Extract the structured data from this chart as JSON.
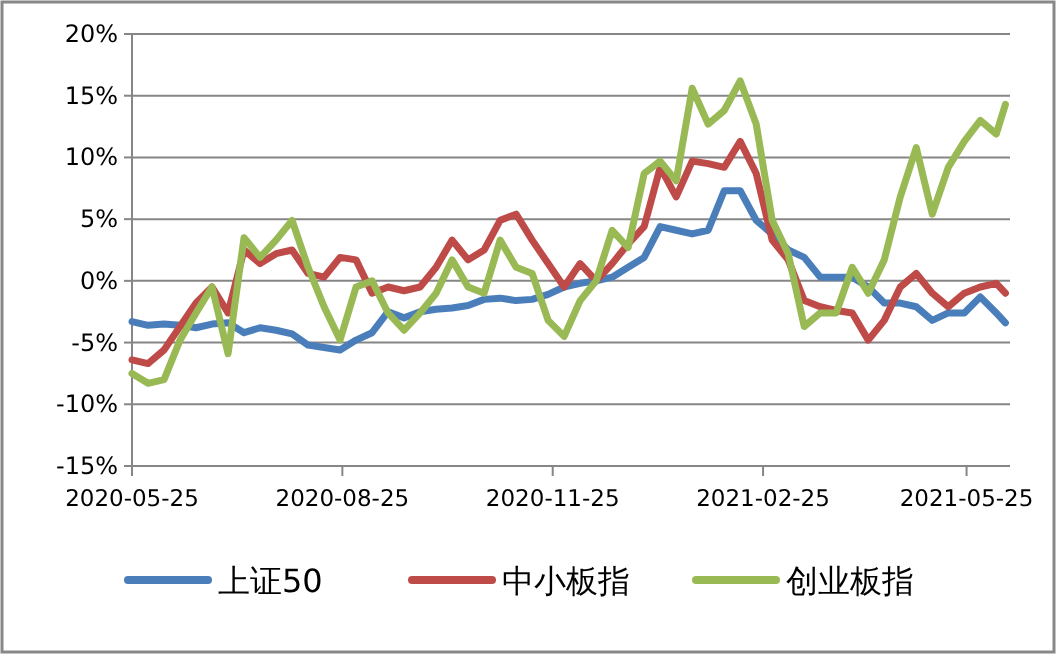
{
  "chart_data": {
    "type": "line",
    "x": [
      "2020-05-25",
      "2020-06-01",
      "2020-06-08",
      "2020-06-15",
      "2020-06-22",
      "2020-06-29",
      "2020-07-06",
      "2020-07-13",
      "2020-07-20",
      "2020-07-27",
      "2020-08-03",
      "2020-08-10",
      "2020-08-17",
      "2020-08-24",
      "2020-08-31",
      "2020-09-07",
      "2020-09-14",
      "2020-09-21",
      "2020-09-28",
      "2020-10-05",
      "2020-10-12",
      "2020-10-19",
      "2020-10-26",
      "2020-11-02",
      "2020-11-09",
      "2020-11-16",
      "2020-11-23",
      "2020-11-30",
      "2020-12-07",
      "2020-12-14",
      "2020-12-21",
      "2020-12-28",
      "2021-01-04",
      "2021-01-11",
      "2021-01-18",
      "2021-01-25",
      "2021-02-01",
      "2021-02-08",
      "2021-02-15",
      "2021-02-22",
      "2021-03-01",
      "2021-03-08",
      "2021-03-15",
      "2021-03-22",
      "2021-03-29",
      "2021-04-05",
      "2021-04-12",
      "2021-04-19",
      "2021-04-26",
      "2021-05-03",
      "2021-05-10",
      "2021-05-17",
      "2021-05-24",
      "2021-05-31",
      "2021-06-07",
      "2021-06-11"
    ],
    "series": [
      {
        "name": "上证50",
        "color": "#4a7ebb",
        "values": [
          -3.3,
          -3.6,
          -3.5,
          -3.6,
          -3.8,
          -3.5,
          -3.4,
          -4.2,
          -3.8,
          -4.0,
          -4.3,
          -5.2,
          -5.4,
          -5.6,
          -4.8,
          -4.2,
          -2.5,
          -3.0,
          -2.5,
          -2.3,
          -2.2,
          -2.0,
          -1.5,
          -1.4,
          -1.6,
          -1.5,
          -1.1,
          -0.5,
          -0.2,
          0,
          0.3,
          1.1,
          1.9,
          4.4,
          4.1,
          3.8,
          4.1,
          7.3,
          7.3,
          4.9,
          3.8,
          2.5,
          1.9,
          0.3,
          0.3,
          0.3,
          -0.5,
          -1.8,
          -1.8,
          -2.1,
          -3.2,
          -2.6,
          -2.6,
          -1.3,
          -2.6,
          -3.4
        ]
      },
      {
        "name": "中小板指",
        "color": "#be4b48",
        "values": [
          -6.4,
          -6.7,
          -5.6,
          -3.7,
          -1.8,
          -0.5,
          -2.6,
          2.5,
          1.4,
          2.2,
          2.5,
          0.6,
          0.3,
          1.9,
          1.7,
          -1.0,
          -0.5,
          -0.8,
          -0.5,
          1.1,
          3.3,
          1.7,
          2.5,
          4.9,
          5.4,
          3.3,
          1.4,
          -0.5,
          1.4,
          0,
          1.4,
          3.0,
          4.4,
          9.2,
          6.8,
          9.7,
          9.5,
          9.2,
          11.3,
          8.7,
          3.3,
          1.7,
          -1.6,
          -2.1,
          -2.4,
          -2.6,
          -4.8,
          -3.2,
          -0.5,
          0.6,
          -1.0,
          -2.1,
          -1.0,
          -0.5,
          -0.2,
          -1.0
        ]
      },
      {
        "name": "创业板指",
        "color": "#98b954",
        "values": [
          -7.5,
          -8.3,
          -8.0,
          -4.8,
          -2.6,
          -0.5,
          -5.9,
          3.5,
          1.9,
          3.3,
          4.9,
          1.1,
          -2.1,
          -4.8,
          -0.5,
          0,
          -2.6,
          -4.0,
          -2.6,
          -1.0,
          1.7,
          -0.5,
          -1.0,
          3.3,
          1.1,
          0.6,
          -3.2,
          -4.5,
          -1.6,
          0,
          4.1,
          2.7,
          8.7,
          9.7,
          8.1,
          15.6,
          12.7,
          13.8,
          16.2,
          12.7,
          4.9,
          2.2,
          -3.7,
          -2.6,
          -2.6,
          1.1,
          -1.0,
          1.7,
          6.8,
          10.8,
          5.4,
          9.2,
          11.3,
          13.0,
          11.9,
          14.3
        ]
      }
    ],
    "xlim": [
      "2020-05-25",
      "2021-06-13"
    ],
    "xticks": [
      "2020-05-25",
      "2020-08-25",
      "2020-11-25",
      "2021-02-25",
      "2021-05-25"
    ],
    "ylim": [
      -15,
      20
    ],
    "yticks": [
      {
        "value": -15,
        "label": "-15%"
      },
      {
        "value": -10,
        "label": "-10%"
      },
      {
        "value": -5,
        "label": "-5%"
      },
      {
        "value": 0,
        "label": "0%"
      },
      {
        "value": 5,
        "label": "5%"
      },
      {
        "value": 10,
        "label": "10%"
      },
      {
        "value": 15,
        "label": "15%"
      },
      {
        "value": 20,
        "label": "20%"
      }
    ],
    "grid": "y",
    "legend": "bottom",
    "marker": "none",
    "line_style": "solid"
  }
}
